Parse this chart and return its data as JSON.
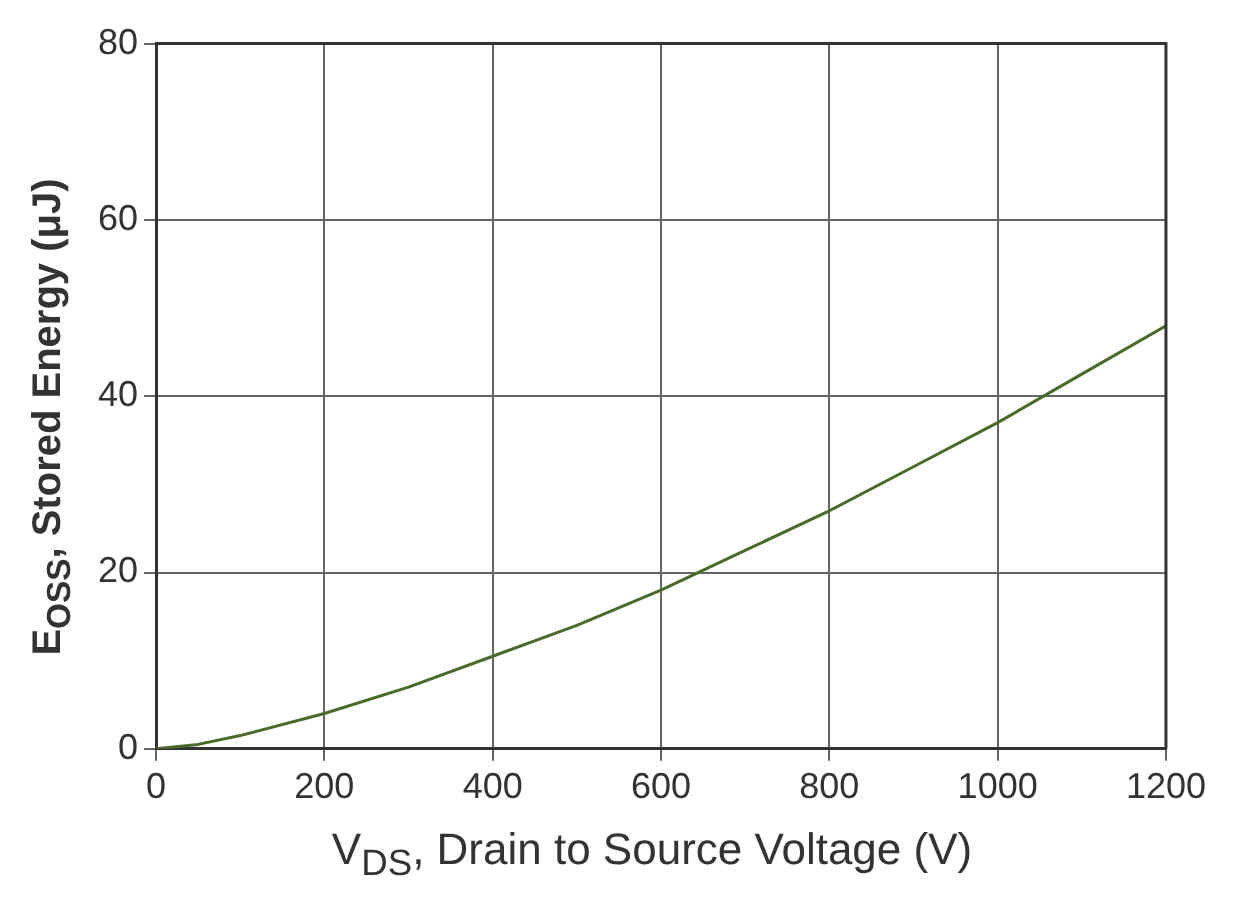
{
  "chart_data": {
    "type": "line",
    "xlabel": "V$_{DS}$, Drain to Source Voltage (V)",
    "ylabel": "E$_{OSS}$, Stored Energy (μJ)",
    "x": [
      0,
      50,
      100,
      200,
      300,
      400,
      500,
      600,
      700,
      800,
      900,
      1000,
      1100,
      1200
    ],
    "series": [
      {
        "color": "#4a6a2a",
        "values": [
          0,
          0.5,
          1.5,
          4,
          7,
          10.5,
          14,
          18,
          22.5,
          27,
          32,
          37,
          42.5,
          48
        ]
      }
    ],
    "xlim": [
      0,
      1200
    ],
    "ylim": [
      0,
      80
    ],
    "xticks": [
      0,
      200,
      400,
      600,
      800,
      1000,
      1200
    ],
    "yticks": [
      0,
      20,
      40,
      60,
      80
    ],
    "grid": true,
    "legend": false,
    "marker": "none",
    "line_style": "solid"
  }
}
